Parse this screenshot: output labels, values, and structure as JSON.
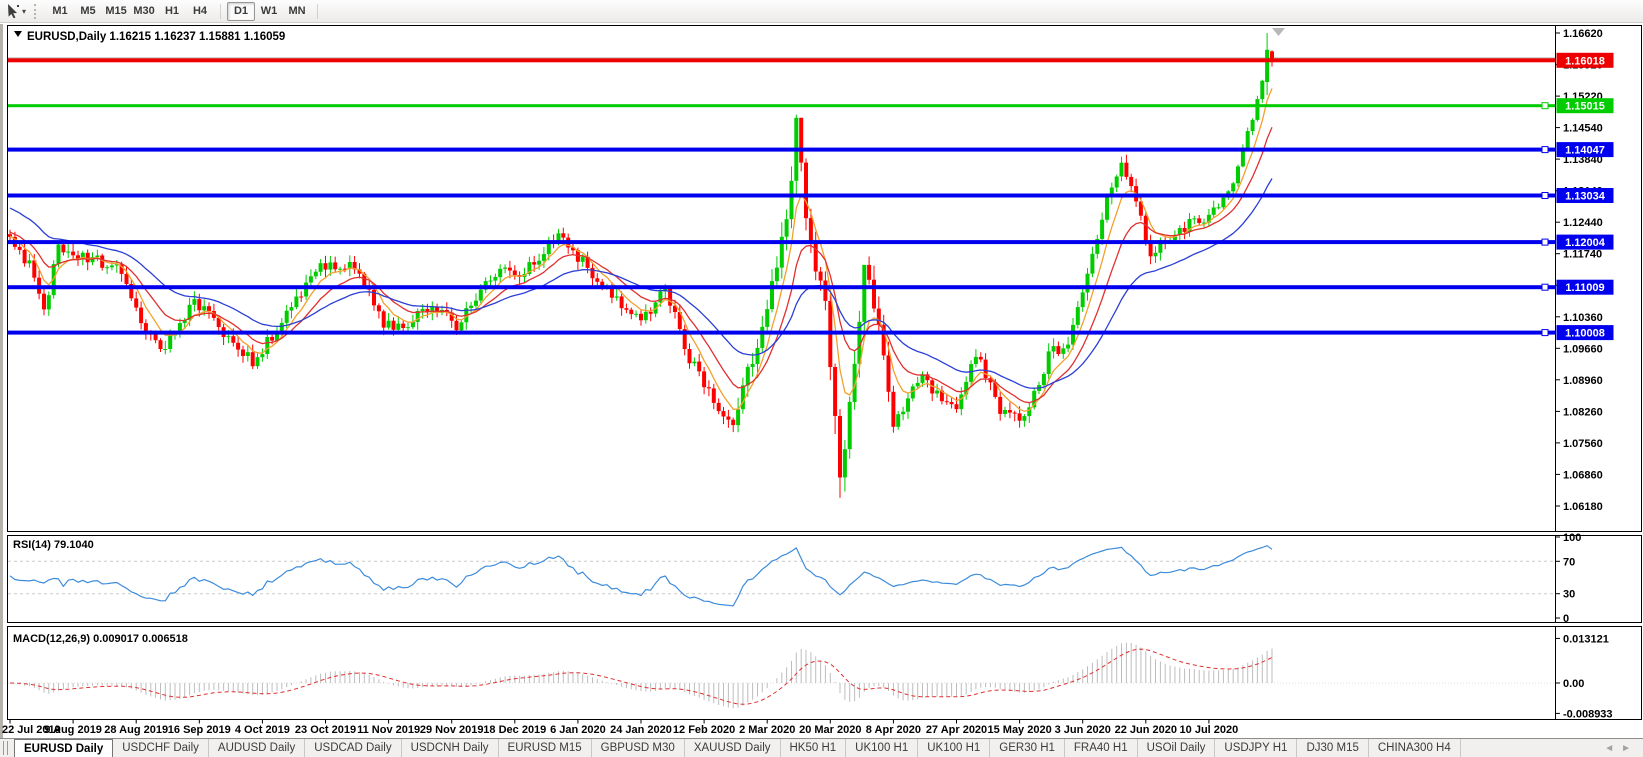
{
  "toolbar": {
    "timeframes": [
      "M1",
      "M5",
      "M15",
      "M30",
      "H1",
      "H4",
      "D1",
      "W1",
      "MN"
    ],
    "active_timeframe": "D1"
  },
  "chart": {
    "symbol": "EURUSD",
    "period": "Daily",
    "title_text": "EURUSD,Daily  1.16215 1.16237 1.15881 1.16059"
  },
  "price_axis": {
    "labels": [
      "1.16620",
      "1.15920",
      "1.15220",
      "1.14540",
      "1.13840",
      "1.13140",
      "1.12440",
      "1.11740",
      "1.11040",
      "1.10360",
      "1.09660",
      "1.08960",
      "1.08260",
      "1.07560",
      "1.06860",
      "1.06180"
    ]
  },
  "indicators": {
    "rsi": {
      "label": "RSI(14) 79.1040",
      "period": 14,
      "last_value": 79.104,
      "axis_labels": [
        "100",
        "70",
        "30",
        "0"
      ],
      "level_values": [
        100,
        70,
        30,
        0
      ],
      "dashed_levels": [
        70,
        30
      ],
      "line_color": "#3C8CDC"
    },
    "macd": {
      "label": "MACD(12,26,9) 0.009017 0.006518",
      "params": [
        12,
        26,
        9
      ],
      "last_main": 0.009017,
      "last_signal": 0.006518,
      "axis_labels": [
        "0.013121",
        "0.00",
        "-0.008933"
      ],
      "axis_values": [
        0.013121,
        0,
        -0.008933
      ],
      "histogram_color": "#BDBDBD",
      "signal_color": "#E03030"
    }
  },
  "date_axis": {
    "labels": [
      "22 Jul 2019",
      "9 Aug 2019",
      "28 Aug 2019",
      "16 Sep 2019",
      "4 Oct 2019",
      "23 Oct 2019",
      "11 Nov 2019",
      "29 Nov 2019",
      "18 Dec 2019",
      "6 Jan 2020",
      "24 Jan 2020",
      "12 Feb 2020",
      "2 Mar 2020",
      "20 Mar 2020",
      "8 Apr 2020",
      "27 Apr 2020",
      "15 May 2020",
      "3 Jun 2020",
      "22 Jun 2020",
      "10 Jul 2020"
    ],
    "candles_per_label": 13
  },
  "tabs": {
    "items": [
      {
        "label": "EURUSD Daily",
        "active": true
      },
      {
        "label": "USDCHF Daily",
        "active": false
      },
      {
        "label": "AUDUSD Daily",
        "active": false
      },
      {
        "label": "USDCAD Daily",
        "active": false
      },
      {
        "label": "USDCNH Daily",
        "active": false
      },
      {
        "label": "EURUSD M15",
        "active": false
      },
      {
        "label": "GBPUSD M30",
        "active": false
      },
      {
        "label": "XAUUSD Daily",
        "active": false
      },
      {
        "label": "HK50 H1",
        "active": false
      },
      {
        "label": "UK100 H1",
        "active": false
      },
      {
        "label": "UK100 H1",
        "active": false
      },
      {
        "label": "GER30 H1",
        "active": false
      },
      {
        "label": "FRA40 H1",
        "active": false
      },
      {
        "label": "USOil Daily",
        "active": false
      },
      {
        "label": "USDJPY H1",
        "active": false
      },
      {
        "label": "DJ30 M15",
        "active": false
      },
      {
        "label": "CHINA300 H4",
        "active": false
      }
    ],
    "left_arrow": "◄",
    "right_arrow": "►"
  },
  "chart_data": {
    "type": "candlestick",
    "symbol": "EURUSD",
    "timeframe": "Daily",
    "candle_count": 261,
    "last_bar": {
      "open": 1.16215,
      "high": 1.16237,
      "low": 1.15881,
      "close": 1.16059
    },
    "y_axis": {
      "top": 1.1662,
      "bottom": 1.0618
    },
    "candle_up_color": "#00CC00",
    "candle_down_color": "#FF0000",
    "background": "#FFFFFF",
    "pane_border": "#000000",
    "horizontal_lines": [
      {
        "price": 1.16018,
        "label": "1.16018",
        "color": "#EE0000",
        "thickness": 4,
        "handle": false
      },
      {
        "price": 1.15015,
        "label": "1.15015",
        "color": "#00CC00",
        "thickness": 3,
        "handle": true
      },
      {
        "price": 1.14047,
        "label": "1.14047",
        "color": "#0000EE",
        "thickness": 4,
        "handle": true
      },
      {
        "price": 1.13034,
        "label": "1.13034",
        "color": "#0000EE",
        "thickness": 4,
        "handle": true
      },
      {
        "price": 1.12004,
        "label": "1.12004",
        "color": "#0000EE",
        "thickness": 4,
        "handle": true
      },
      {
        "price": 1.11009,
        "label": "1.11009",
        "color": "#0000EE",
        "thickness": 4,
        "handle": true
      },
      {
        "price": 1.10008,
        "label": "1.10008",
        "color": "#0000EE",
        "thickness": 4,
        "handle": true
      }
    ],
    "bid_line": {
      "price": 1.16059,
      "color": "#B4B4B4"
    },
    "moving_averages": [
      {
        "name": "fast",
        "type": "ema",
        "period": 6,
        "color": "#F2A12C",
        "start_offset": 0.0003
      },
      {
        "name": "medium",
        "type": "ema",
        "period": 13,
        "color": "#E03030",
        "start_offset": 0.0012
      },
      {
        "name": "slow",
        "type": "ema",
        "period": 30,
        "color": "#2B3FD6",
        "start_offset": 0.0068
      }
    ],
    "trajectory_keypoints": [
      [
        0,
        1.121
      ],
      [
        4,
        1.115
      ],
      [
        7,
        1.1044
      ],
      [
        10,
        1.1195
      ],
      [
        15,
        1.117
      ],
      [
        22,
        1.1145
      ],
      [
        28,
        1.0995
      ],
      [
        32,
        1.097
      ],
      [
        38,
        1.107
      ],
      [
        43,
        1.1015
      ],
      [
        50,
        1.0935
      ],
      [
        57,
        1.104
      ],
      [
        63,
        1.114
      ],
      [
        71,
        1.1152
      ],
      [
        77,
        1.1017
      ],
      [
        82,
        1.1021
      ],
      [
        87,
        1.106
      ],
      [
        92,
        1.1018
      ],
      [
        100,
        1.113
      ],
      [
        106,
        1.1135
      ],
      [
        113,
        1.1212
      ],
      [
        121,
        1.1122
      ],
      [
        130,
        1.1023
      ],
      [
        135,
        1.1093
      ],
      [
        140,
        1.0945
      ],
      [
        149,
        1.0785
      ],
      [
        155,
        1.1026
      ],
      [
        158,
        1.113
      ],
      [
        161,
        1.134
      ],
      [
        162,
        1.1456
      ],
      [
        165,
        1.1184
      ],
      [
        168,
        1.105
      ],
      [
        170,
        1.08
      ],
      [
        171,
        1.069
      ],
      [
        172,
        1.0725
      ],
      [
        176,
        1.1141
      ],
      [
        179,
        1.102
      ],
      [
        182,
        1.0791
      ],
      [
        188,
        1.091
      ],
      [
        191,
        1.086
      ],
      [
        195,
        1.082
      ],
      [
        199,
        1.0955
      ],
      [
        204,
        1.0834
      ],
      [
        209,
        1.0805
      ],
      [
        214,
        1.095
      ],
      [
        218,
        1.0983
      ],
      [
        222,
        1.1134
      ],
      [
        226,
        1.1289
      ],
      [
        229,
        1.1374
      ],
      [
        232,
        1.129
      ],
      [
        235,
        1.1177
      ],
      [
        240,
        1.1219
      ],
      [
        243,
        1.1239
      ],
      [
        246,
        1.125
      ],
      [
        249,
        1.128
      ],
      [
        252,
        1.133
      ],
      [
        254,
        1.1413
      ],
      [
        256,
        1.1475
      ],
      [
        258,
        1.1554
      ],
      [
        259,
        1.1625
      ],
      [
        260,
        1.1606
      ]
    ],
    "candle_overrides": [
      {
        "i": 162,
        "h": 1.1482
      },
      {
        "i": 163,
        "h": 1.146
      },
      {
        "i": 170,
        "l": 1.0777
      },
      {
        "i": 171,
        "l": 1.0636
      },
      {
        "i": 176,
        "h": 1.1147
      },
      {
        "i": 259,
        "o": 1.1554,
        "c": 1.1625,
        "h": 1.1662,
        "l": 1.1525
      },
      {
        "i": 260,
        "o": 1.16215,
        "h": 1.16237,
        "l": 1.15881,
        "c": 1.16059
      }
    ],
    "shift_marker": true
  }
}
